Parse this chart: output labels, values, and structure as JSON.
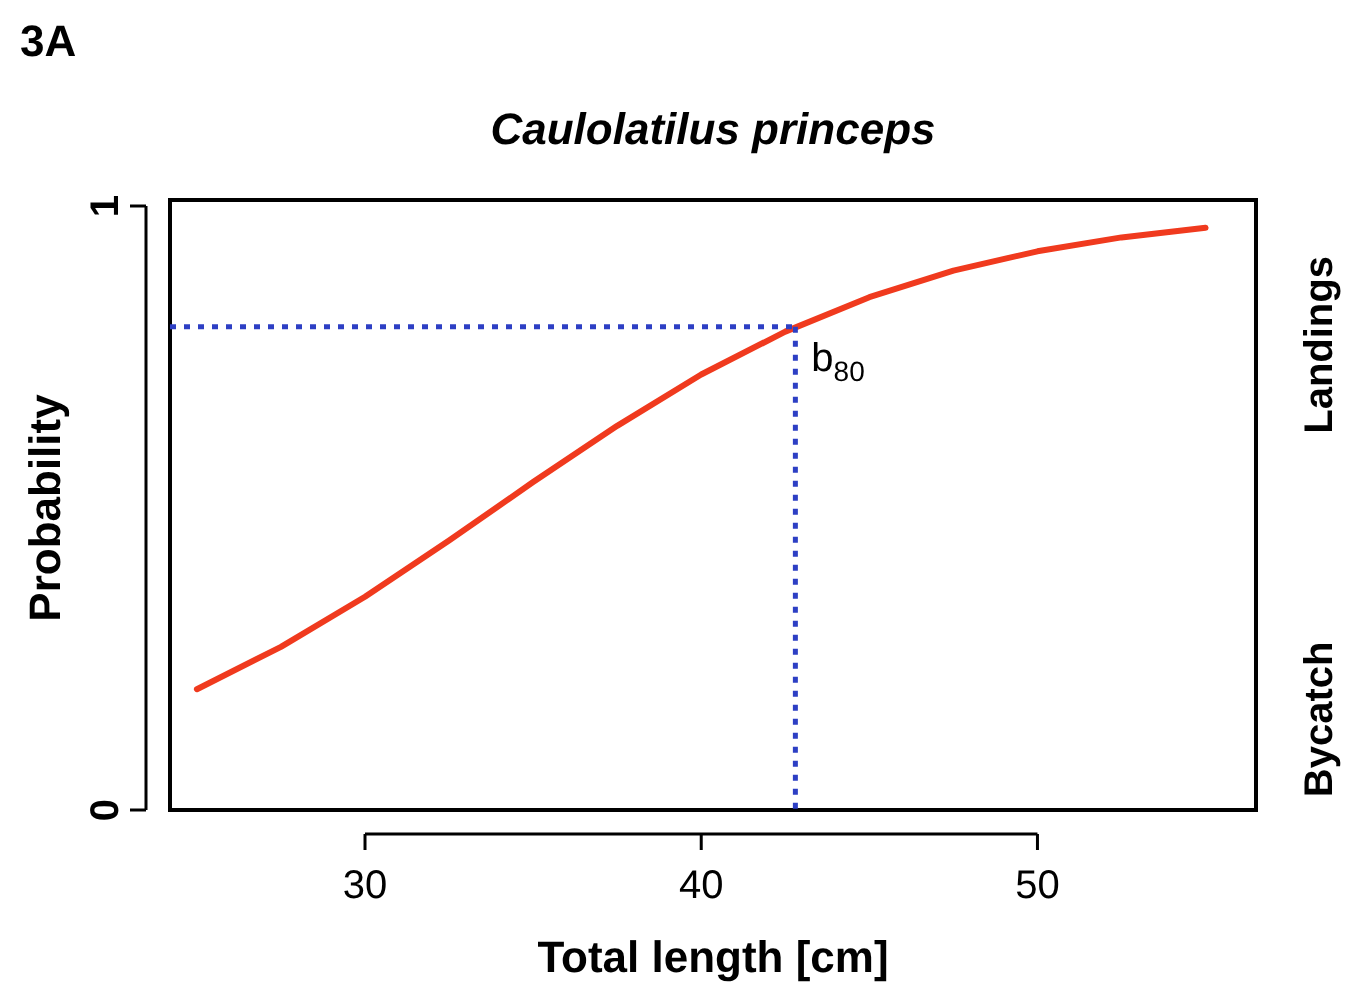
{
  "chart_data": {
    "type": "line",
    "title": "Caulolatilus princeps",
    "xlabel": "Total length [cm]",
    "ylabel": "Probability",
    "xlim": [
      24.2,
      56.5
    ],
    "xticks": [
      30,
      40,
      50
    ],
    "ylim": [
      0,
      1
    ],
    "yticks": [
      0,
      1
    ],
    "grid": false,
    "marker": "none",
    "annotations": [
      "3A",
      "Landings",
      "Bycatch",
      {
        "text": "b$_{80}$",
        "x": 42.8,
        "y": 0.8
      }
    ],
    "series": [
      {
        "color": "#f03a1e",
        "line_style": "solid",
        "x": [
          25,
          27.5,
          30,
          32.5,
          35,
          37.5,
          40,
          42.5,
          45,
          47.5,
          50,
          52.5,
          55
        ],
        "values": [
          0.2,
          0.27,
          0.353,
          0.446,
          0.543,
          0.636,
          0.721,
          0.792,
          0.849,
          0.893,
          0.925,
          0.948,
          0.964
        ]
      },
      {
        "color": "#2d3fc4",
        "line_style": "dotted",
        "x": [
          24.2,
          42.8
        ],
        "values": [
          0.8,
          0.8
        ]
      },
      {
        "color": "#2d3fc4",
        "line_style": "dotted",
        "x": [
          42.8,
          42.8
        ],
        "values": [
          0.8,
          0
        ]
      }
    ]
  }
}
